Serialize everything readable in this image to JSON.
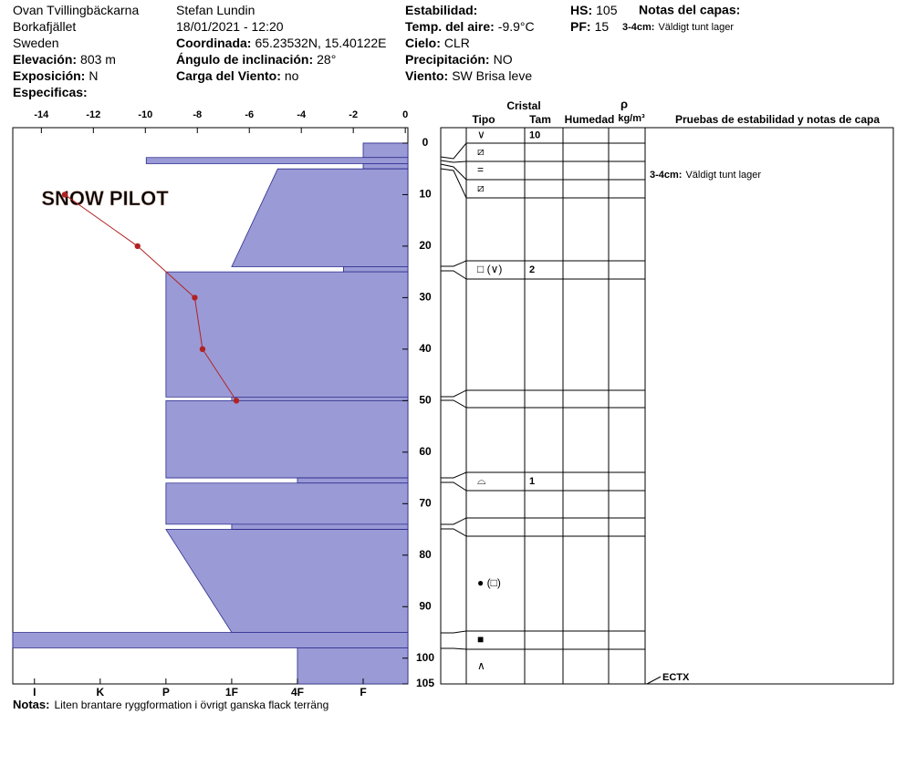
{
  "header": {
    "columns": [
      [
        {
          "value": "Ovan Tvillingbäckarna"
        },
        {
          "value": "Borkafjället"
        },
        {
          "value": "Sweden"
        },
        {
          "label": "Elevación:",
          "value": "803 m"
        },
        {
          "label": "Exposición:",
          "value": "N"
        },
        {
          "label": "Especificas:"
        }
      ],
      [
        {
          "value": "Stefan Lundin"
        },
        {
          "value": "18/01/2021 - 12:20"
        },
        {
          "label": "Coordinada:",
          "value": "65.23532N, 15.40122E"
        },
        {
          "label": "Ángulo de inclinación:",
          "value": "28°"
        },
        {
          "label": "Carga del Viento:",
          "value": "no"
        }
      ],
      [
        {
          "label": "Estabilidad:"
        },
        {
          "label": "Temp. del aire:",
          "value": "-9.9°C"
        },
        {
          "label": "Cielo:",
          "value": "CLR"
        },
        {
          "label": "Precipitación:",
          "value": "NO"
        },
        {
          "label": "Viento:",
          "value": "SW Brisa leve"
        }
      ],
      [
        {
          "label": "HS:",
          "value": "105"
        },
        {
          "label": "PF:",
          "value": "15"
        }
      ]
    ],
    "layer_notes_title": "Notas del capas:",
    "layer_notes": [
      {
        "label": "3-4cm:",
        "value": "Väldigt tunt lager"
      }
    ]
  },
  "profile": {
    "type": "snow-profile",
    "watermark": "SNOW PILOT",
    "temperature_xlim": [
      -15.1,
      0.1
    ],
    "temperature_xticks": [
      -14,
      -12,
      -10,
      -8,
      -6,
      -4,
      -2,
      0
    ],
    "depth_ylim": [
      -3,
      105
    ],
    "depth_yticks": [
      0,
      10,
      20,
      30,
      40,
      50,
      60,
      70,
      80,
      90,
      100,
      105
    ],
    "hardness_xlim": [
      0.32,
      6.33
    ],
    "hardness_xticks": [
      {
        "value": 6,
        "label": "I"
      },
      {
        "value": 5,
        "label": "K"
      },
      {
        "value": 4,
        "label": "P"
      },
      {
        "value": 3,
        "label": "1F"
      },
      {
        "value": 2,
        "label": "4F"
      },
      {
        "value": 1,
        "label": "F"
      }
    ],
    "bar_color": "#9a9ad6",
    "bar_edge": "#2b2b8c",
    "temperature_color": "#b22222",
    "layers": [
      {
        "top": 0,
        "bottom": 2.8,
        "hardness": 1
      },
      {
        "top": 2.8,
        "bottom": 4,
        "hardness": 4.3
      },
      {
        "top": 4,
        "bottom": 5,
        "hardness": 1
      },
      {
        "top": 5,
        "bottom": 24,
        "hardness": 2.3,
        "hardness_bottom": 3
      },
      {
        "top": 24,
        "bottom": 25,
        "hardness": 1.3
      },
      {
        "top": 25,
        "bottom": 49.3,
        "hardness": 4
      },
      {
        "top": 49.3,
        "bottom": 50,
        "hardness": 3
      },
      {
        "top": 50,
        "bottom": 65,
        "hardness": 4
      },
      {
        "top": 65,
        "bottom": 66,
        "hardness": 2
      },
      {
        "top": 66,
        "bottom": 74,
        "hardness": 4
      },
      {
        "top": 74,
        "bottom": 75,
        "hardness": 3
      },
      {
        "top": 75,
        "bottom": 95,
        "hardness": 4,
        "hardness_bottom": 3
      },
      {
        "top": 95,
        "bottom": 98,
        "hardness": 6.33
      },
      {
        "top": 98,
        "bottom": 105,
        "hardness": 2
      }
    ],
    "temperature": {
      "depths": [
        10,
        20,
        30,
        40,
        50
      ],
      "values": [
        -13.1,
        -10.3,
        -8.1,
        -7.8,
        -6.5
      ]
    }
  },
  "table": {
    "headers": {
      "crystal": "Cristal",
      "rho": "ρ",
      "type": "Tipo",
      "size": "Tam",
      "moisture": "Humedad",
      "density": "kg/m³",
      "tests": "Pruebas de estabilidad y notas de capa"
    },
    "rows": [
      {
        "type": "∨",
        "size": "10"
      },
      {
        "type": "⧄"
      },
      {
        "type": "="
      },
      {
        "type": "⧄"
      },
      {},
      {
        "type": "□ (∨)",
        "size": "2"
      },
      {},
      {},
      {},
      {
        "type": "⌓",
        "size": "1"
      },
      {},
      {},
      {
        "type": "● (□)"
      },
      {
        "type": "■"
      },
      {
        "type": "∧"
      }
    ],
    "note": {
      "label": "3-4cm:",
      "value": "Väldigt tunt lager"
    },
    "test": "ECTX"
  },
  "notes": {
    "label": "Notas:",
    "value": "Liten brantare ryggformation i övrigt ganska flack terräng"
  }
}
